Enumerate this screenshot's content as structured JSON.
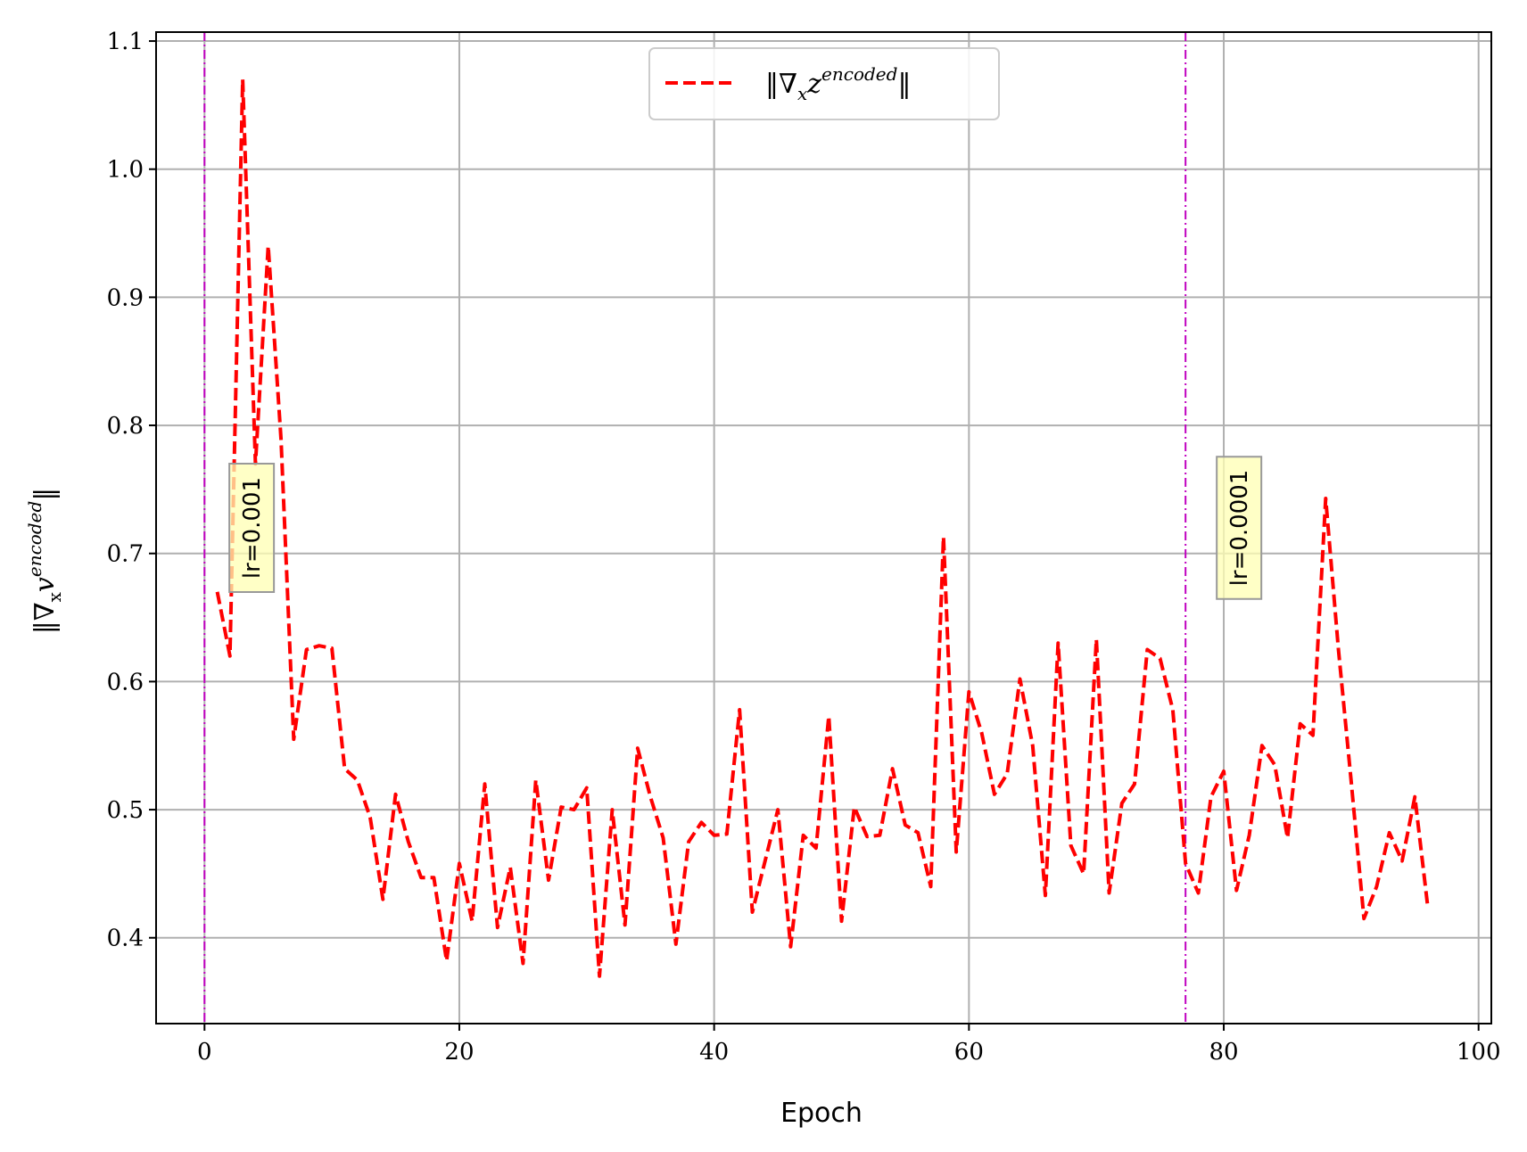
{
  "chart_data": {
    "type": "line",
    "xlabel": "Epoch",
    "ylabel_parts": [
      "‖∇",
      "x",
      "v",
      "encoded",
      "‖"
    ],
    "xlim": [
      -3.8,
      101.0
    ],
    "ylim": [
      0.333,
      1.107
    ],
    "xticks": [
      0,
      20,
      40,
      60,
      80,
      100
    ],
    "yticks": [
      0.4,
      0.5,
      0.6,
      0.7,
      0.8,
      0.9,
      1.0,
      1.1
    ],
    "xtick_labels": [
      "0",
      "20",
      "40",
      "60",
      "80",
      "100"
    ],
    "ytick_labels": [
      "0.4",
      "0.5",
      "0.6",
      "0.7",
      "0.8",
      "0.9",
      "1.0",
      "1.1"
    ],
    "grid": true,
    "legend_position": "top-center",
    "legend_parts": [
      "‖∇",
      "x",
      "z",
      "encoded",
      "‖"
    ],
    "series": [
      {
        "color": "#ff0000",
        "line_style": "dashed",
        "x": [
          1,
          2,
          3,
          4,
          5,
          6,
          7,
          8,
          9,
          10,
          11,
          12,
          13,
          14,
          15,
          16,
          17,
          18,
          19,
          20,
          21,
          22,
          23,
          24,
          25,
          26,
          27,
          28,
          29,
          30,
          31,
          32,
          33,
          34,
          35,
          36,
          37,
          38,
          39,
          40,
          41,
          42,
          43,
          44,
          45,
          46,
          47,
          48,
          49,
          50,
          51,
          52,
          53,
          54,
          55,
          56,
          57,
          58,
          59,
          60,
          61,
          62,
          63,
          64,
          65,
          66,
          67,
          68,
          69,
          70,
          71,
          72,
          73,
          74,
          75,
          76,
          77,
          78,
          79,
          80,
          81,
          82,
          83,
          84,
          85,
          86,
          87,
          88,
          89,
          90,
          91,
          92,
          93,
          94,
          95,
          96
        ],
        "y": [
          0.67,
          0.62,
          1.07,
          0.77,
          0.94,
          0.79,
          0.555,
          0.625,
          0.628,
          0.626,
          0.532,
          0.523,
          0.494,
          0.43,
          0.512,
          0.475,
          0.447,
          0.447,
          0.382,
          0.458,
          0.413,
          0.52,
          0.408,
          0.455,
          0.38,
          0.523,
          0.445,
          0.502,
          0.5,
          0.517,
          0.37,
          0.5,
          0.41,
          0.548,
          0.51,
          0.478,
          0.395,
          0.475,
          0.49,
          0.48,
          0.481,
          0.578,
          0.42,
          0.46,
          0.5,
          0.393,
          0.48,
          0.47,
          0.573,
          0.413,
          0.502,
          0.479,
          0.48,
          0.532,
          0.488,
          0.482,
          0.44,
          0.713,
          0.467,
          0.592,
          0.56,
          0.512,
          0.528,
          0.602,
          0.55,
          0.433,
          0.63,
          0.472,
          0.45,
          0.633,
          0.435,
          0.505,
          0.52,
          0.625,
          0.618,
          0.578,
          0.458,
          0.435,
          0.51,
          0.53,
          0.437,
          0.48,
          0.55,
          0.535,
          0.478,
          0.567,
          0.558,
          0.743,
          0.625,
          0.522,
          0.415,
          0.44,
          0.482,
          0.46,
          0.51,
          0.425
        ]
      }
    ],
    "vlines": [
      {
        "x": 0,
        "color": "#c000c0",
        "line_style": "dash-dot"
      },
      {
        "x": 77,
        "color": "#c000c0",
        "line_style": "dash-dot"
      }
    ],
    "annotations": [
      {
        "text": "lr=0.001",
        "x": 3.7,
        "y": 0.72,
        "rotation": 90,
        "box_color": "#ffffb3"
      },
      {
        "text": "lr=0.0001",
        "x": 81.2,
        "y": 0.72,
        "rotation": 90,
        "box_color": "#ffffb3"
      }
    ]
  }
}
